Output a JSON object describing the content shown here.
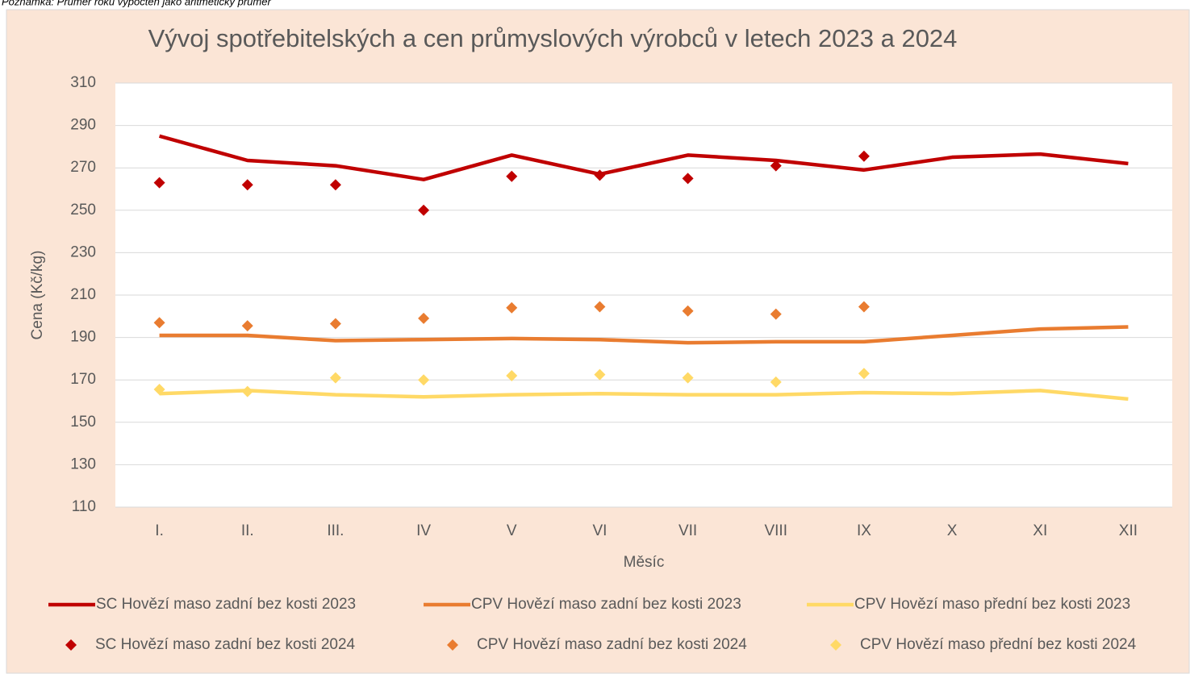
{
  "note": "Poznámka: Průměr roku vypočten jako aritmetický průměr",
  "chart_data": {
    "type": "line",
    "title": "Vývoj spotřebitelských a cen průmyslových výrobců v letech 2023 a 2024",
    "x_label": "Měsíc",
    "y_label": "Cena (Kč/kg)",
    "categories": [
      "I.",
      "II.",
      "III.",
      "IV",
      "V",
      "VI",
      "VII",
      "VIII",
      "IX",
      "X",
      "XI",
      "XII"
    ],
    "ylim": [
      110,
      310
    ],
    "yticks": [
      110,
      130,
      150,
      170,
      190,
      210,
      230,
      250,
      270,
      290,
      310
    ],
    "grid": true,
    "legend": "bottom",
    "series": [
      {
        "name": "SC Hovězí  maso zadní bez kosti 2023",
        "type": "line",
        "color": "#c00000",
        "values": [
          285,
          273.5,
          271,
          264.5,
          276,
          267,
          276,
          273.5,
          269,
          275,
          276.5,
          272
        ]
      },
      {
        "name": "CPV  Hovězí maso zadní bez kosti 2023",
        "type": "line",
        "color": "#e97c30",
        "values": [
          191,
          191,
          188.5,
          189,
          189.5,
          189,
          187.5,
          188,
          188,
          191,
          194,
          195
        ]
      },
      {
        "name": "CPV Hovězí maso přední bez kosti 2023",
        "type": "line",
        "color": "#ffd966",
        "values": [
          163.5,
          165,
          163,
          162,
          163,
          163.5,
          163,
          163,
          164,
          163.5,
          165,
          161
        ]
      },
      {
        "name": "SC Hovězí  maso zadní bez kosti 2024",
        "type": "scatter",
        "color": "#c00000",
        "values": [
          263,
          262,
          262,
          250,
          266,
          266.5,
          265,
          271,
          275.5,
          null,
          null,
          null
        ]
      },
      {
        "name": "CPV Hovězí maso zadní bez kosti 2024",
        "type": "scatter",
        "color": "#e97c30",
        "values": [
          197,
          195.5,
          196.5,
          199,
          204,
          204.5,
          202.5,
          201,
          204.5,
          null,
          null,
          null
        ]
      },
      {
        "name": "CPV Hovězí maso přední bez kosti 2024",
        "type": "scatter",
        "color": "#ffd966",
        "values": [
          165.5,
          164.5,
          171,
          170,
          172,
          172.5,
          171,
          169,
          173,
          null,
          null,
          null
        ]
      }
    ]
  }
}
